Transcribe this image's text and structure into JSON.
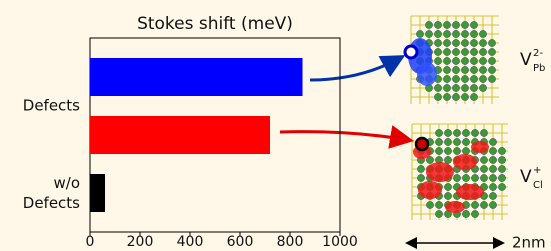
{
  "chart_data": {
    "type": "barh",
    "title": "Stokes shift (meV)",
    "categories": [
      "Defects",
      null,
      "w/o Defects"
    ],
    "values": [
      850,
      720,
      60
    ],
    "colors": [
      "#0000ff",
      "#ff0000",
      "#000000"
    ],
    "xlim": [
      0,
      1000
    ],
    "xticks": [
      0,
      200,
      400,
      600,
      800,
      1000
    ],
    "annotations": [
      {
        "text": "V",
        "sub": "Pb",
        "sup": "2-"
      },
      {
        "text": "V",
        "sub": "Cl",
        "sup": "+"
      }
    ],
    "scale_bar": "2nm"
  }
}
